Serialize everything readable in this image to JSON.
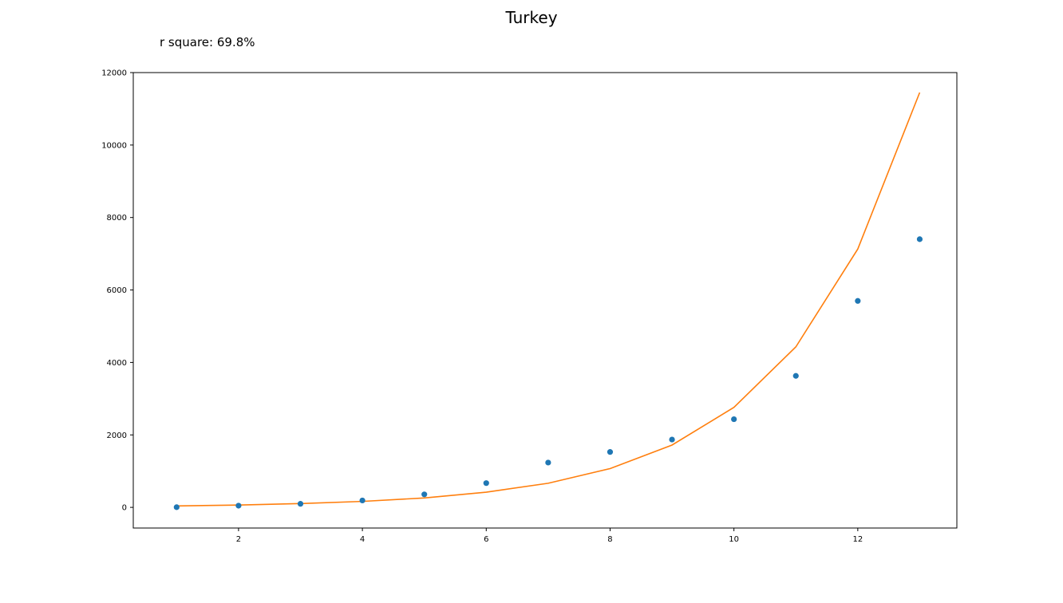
{
  "chart_data": {
    "type": "scatter",
    "title": "Turkey",
    "annotation": "r square: 69.8%",
    "xlabel": "",
    "ylabel": "",
    "xlim": [
      0.3,
      13.6
    ],
    "ylim": [
      -570,
      12000
    ],
    "xticks": [
      2,
      4,
      6,
      8,
      10,
      12
    ],
    "yticks": [
      0,
      2000,
      4000,
      6000,
      8000,
      10000,
      12000
    ],
    "grid": false,
    "series": [
      {
        "type": "scatter",
        "color": "#1f77b4",
        "x": [
          1,
          2,
          3,
          4,
          5,
          6,
          7,
          8,
          9,
          10,
          11,
          12,
          13
        ],
        "y": [
          5,
          47,
          98,
          191,
          359,
          670,
          1236,
          1529,
          1872,
          2433,
          3629,
          5698,
          7402
        ]
      },
      {
        "type": "line",
        "color": "#ff7f0e",
        "x": [
          1,
          2,
          3,
          4,
          5,
          6,
          7,
          8,
          9,
          10,
          11,
          12,
          13
        ],
        "y": [
          40,
          65,
          105,
          165,
          260,
          420,
          665,
          1070,
          1720,
          2760,
          4430,
          7130,
          11450
        ]
      }
    ]
  }
}
